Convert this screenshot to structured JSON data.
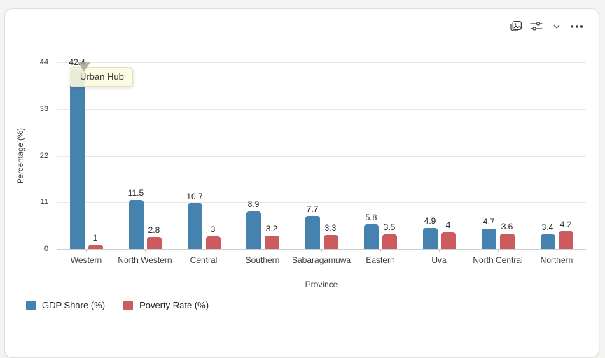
{
  "header": {
    "icons": [
      {
        "name": "image-icon"
      },
      {
        "name": "filters-icon"
      },
      {
        "name": "chevron-down-icon"
      },
      {
        "name": "more-options-icon"
      }
    ]
  },
  "tooltip": {
    "text": "Urban Hub"
  },
  "chart_data": {
    "type": "bar",
    "title": "",
    "categories": [
      "Western",
      "North Western",
      "Central",
      "Southern",
      "Sabaragamuwa",
      "Eastern",
      "Uva",
      "North Central",
      "Northern"
    ],
    "series": [
      {
        "name": "GDP Share (%)",
        "color": "#4682b0",
        "values": [
          42.4,
          11.5,
          10.7,
          8.9,
          7.7,
          5.8,
          4.9,
          4.7,
          3.4
        ]
      },
      {
        "name": "Poverty Rate (%)",
        "color": "#cb5b5c",
        "values": [
          1,
          2.8,
          3,
          3.2,
          3.3,
          3.5,
          4,
          3.6,
          4.2
        ]
      }
    ],
    "xlabel": "Province",
    "ylabel": "Percentage (%)",
    "yticks": [
      0,
      11,
      22,
      33,
      44
    ],
    "ylim": [
      0,
      44
    ],
    "grid": true,
    "legend_position": "bottom-left",
    "annotations": [
      "Urban Hub"
    ]
  }
}
